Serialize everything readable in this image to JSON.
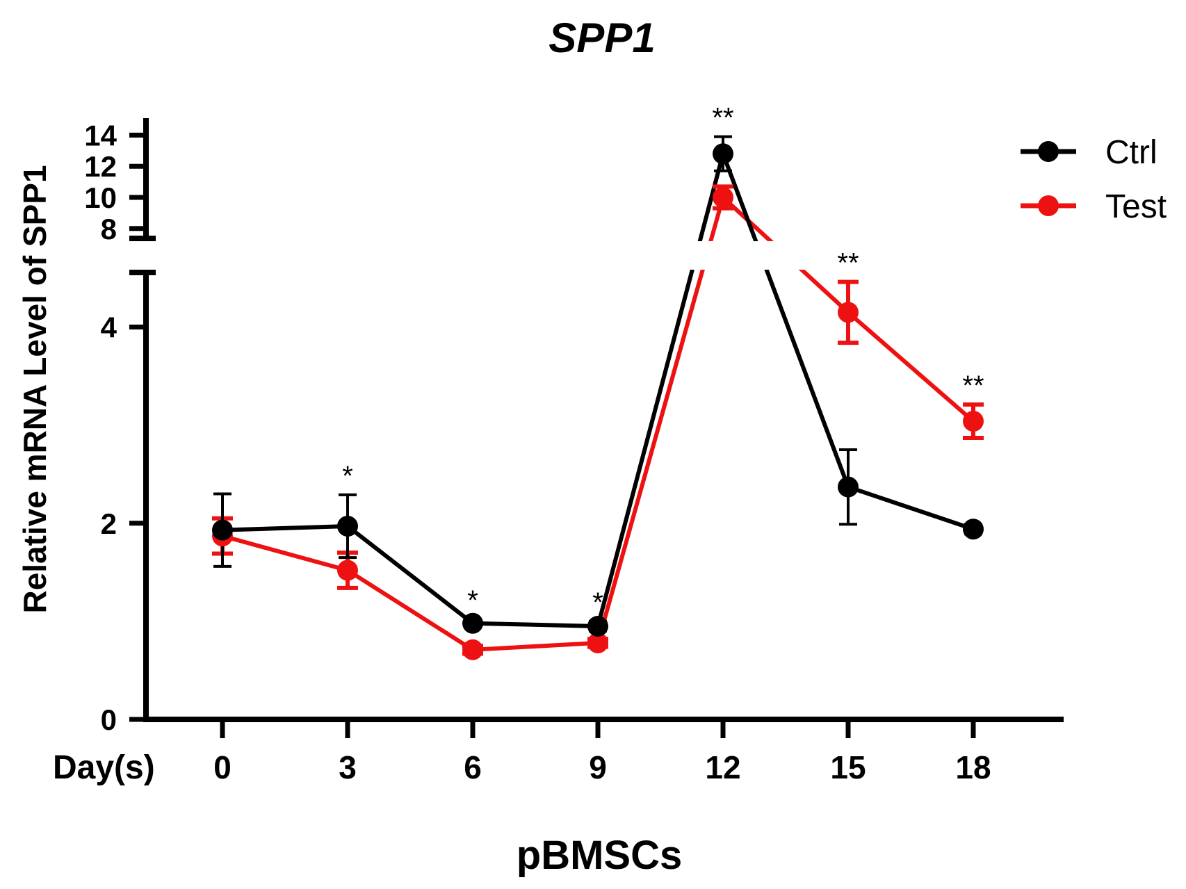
{
  "chart_data": {
    "type": "line",
    "title": "SPP1",
    "ylabel": "Relative mRNA Level of  SPP1",
    "xlabel": "pBMSCs",
    "x_prefix_label": "Day(s)",
    "x": [
      0,
      3,
      6,
      9,
      12,
      15,
      18
    ],
    "x_tick_labels": [
      "0",
      "3",
      "6",
      "9",
      "12",
      "15",
      "18"
    ],
    "y_axis_broken": true,
    "ylim_lower": [
      0,
      4.5
    ],
    "ylim_upper": [
      7.5,
      15
    ],
    "yticks_lower": [
      "0",
      "2",
      "4"
    ],
    "yticks_upper": [
      "8",
      "10",
      "12",
      "14"
    ],
    "series": [
      {
        "name": "Ctrl",
        "color": "#000000",
        "values": [
          1.93,
          1.97,
          0.98,
          0.95,
          12.8,
          2.37,
          1.94
        ],
        "errors": [
          0.37,
          0.32,
          0.04,
          0.05,
          1.1,
          0.38,
          0.05
        ]
      },
      {
        "name": "Test",
        "color": "#ee1111",
        "values": [
          1.87,
          1.52,
          0.71,
          0.78,
          10.0,
          4.15,
          3.04
        ],
        "errors": [
          0.18,
          0.18,
          0.04,
          0.04,
          0.7,
          0.31,
          0.17
        ]
      }
    ],
    "significance": [
      {
        "x": 3,
        "label": "*"
      },
      {
        "x": 6,
        "label": "*"
      },
      {
        "x": 9,
        "label": "*"
      },
      {
        "x": 12,
        "label": "**"
      },
      {
        "x": 15,
        "label": "**"
      },
      {
        "x": 18,
        "label": "**"
      }
    ],
    "legend_position": "top-right"
  }
}
